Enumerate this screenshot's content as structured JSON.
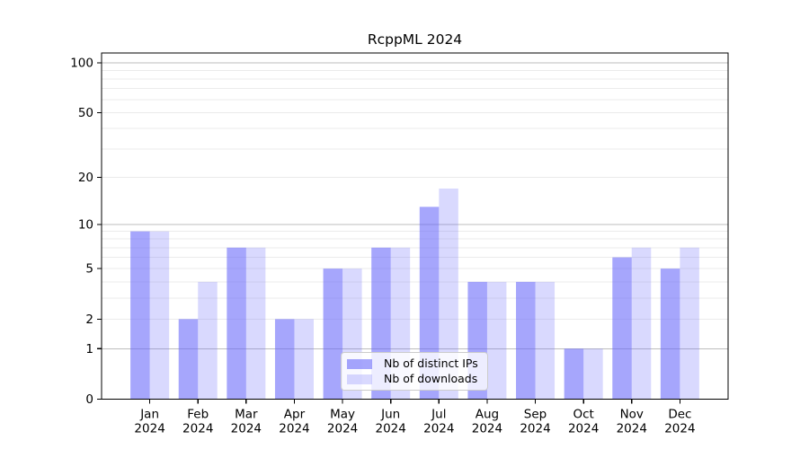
{
  "chart_data": {
    "type": "bar",
    "title": "RcppML 2024",
    "categories": [
      "Jan",
      "Feb",
      "Mar",
      "Apr",
      "May",
      "Jun",
      "Jul",
      "Aug",
      "Sep",
      "Oct",
      "Nov",
      "Dec"
    ],
    "x_year_label": "2024",
    "series": [
      {
        "name": "Nb of distinct IPs",
        "color": "rgba(102,102,250,0.58)",
        "values": [
          9,
          2,
          7,
          2,
          5,
          7,
          13,
          4,
          4,
          1,
          6,
          5
        ]
      },
      {
        "name": "Nb of downloads",
        "color": "rgba(102,102,250,0.25)",
        "values": [
          9,
          4,
          7,
          2,
          5,
          7,
          17,
          4,
          4,
          1,
          7,
          7
        ]
      }
    ],
    "y_axis": {
      "scale": "log1p",
      "tick_values": [
        0,
        1,
        2,
        5,
        10,
        20,
        50,
        100
      ],
      "major_gridlines": [
        1,
        10,
        100
      ],
      "minor_gridlines": [
        2,
        3,
        4,
        5,
        6,
        7,
        8,
        9,
        20,
        30,
        40,
        50,
        60,
        70,
        80,
        90
      ],
      "ylim": [
        0,
        115
      ]
    },
    "legend": {
      "position": "lower center"
    },
    "grid": true,
    "colors": {
      "grid_major": "#bdbdbd",
      "grid_minor": "#ebebeb",
      "axis": "#000000",
      "text": "#000000",
      "background": "#ffffff"
    }
  }
}
